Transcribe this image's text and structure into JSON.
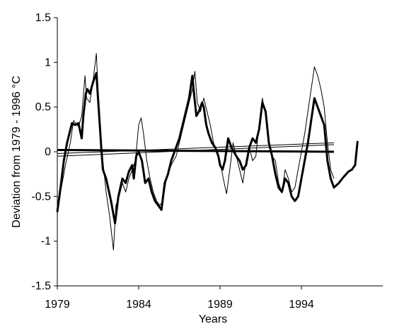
{
  "chart_data": {
    "type": "line",
    "title": "",
    "xlabel": "Years",
    "ylabel": "Deviation from 1979 - 1996 °C",
    "xlim": [
      1979,
      1999
    ],
    "ylim": [
      -1.5,
      1.5
    ],
    "grid": false,
    "legend": "none",
    "x_ticks": [
      1979,
      1984,
      1989,
      1994
    ],
    "x_tick_labels": [
      "1979",
      "1984",
      "1989",
      "1994"
    ],
    "y_ticks": [
      -1.5,
      -1,
      -0.5,
      0,
      0.5,
      1,
      1.5
    ],
    "y_tick_labels": [
      "-1.5",
      "-1",
      "-0.5",
      "0",
      "0.5",
      "1",
      "1.5"
    ],
    "series": [
      {
        "style": "thick",
        "x": [
          1979.0,
          1979.2,
          1979.4,
          1979.6,
          1979.9,
          1980.1,
          1980.3,
          1980.5,
          1980.6,
          1980.75,
          1980.85,
          1981.0,
          1981.2,
          1981.4,
          1981.7,
          1981.8,
          1982.0,
          1982.3,
          1982.55,
          1982.75,
          1983.0,
          1983.2,
          1983.4,
          1983.6,
          1983.7,
          1983.85,
          1984.0,
          1984.2,
          1984.4,
          1984.6,
          1984.8,
          1985.0,
          1985.2,
          1985.4,
          1985.6,
          1985.8,
          1986.0,
          1986.3,
          1986.5,
          1986.7,
          1986.9,
          1987.1,
          1987.3,
          1987.4,
          1987.55,
          1987.7,
          1987.9,
          1988.0,
          1988.15,
          1988.3,
          1988.5,
          1988.7,
          1988.9,
          1989.0,
          1989.15,
          1989.3,
          1989.5,
          1989.7,
          1989.85,
          1990.0,
          1990.2,
          1990.4,
          1990.6,
          1990.8,
          1991.0,
          1991.2,
          1991.4,
          1991.6,
          1991.8,
          1992.0,
          1992.2,
          1992.4,
          1992.6,
          1992.8,
          1993.0,
          1993.2,
          1993.4,
          1993.6,
          1993.8,
          1994.0,
          1994.2,
          1994.4,
          1994.6,
          1994.8,
          1995.0,
          1995.2,
          1995.4,
          1995.6,
          1995.8,
          1996.0,
          1996.3,
          1996.6,
          1996.9,
          1997.1,
          1997.3,
          1997.45
        ],
        "y": [
          -0.67,
          -0.4,
          -0.1,
          0.1,
          0.32,
          0.3,
          0.32,
          0.15,
          0.4,
          0.65,
          0.7,
          0.65,
          0.78,
          0.88,
          0.05,
          -0.2,
          -0.3,
          -0.55,
          -0.8,
          -0.5,
          -0.3,
          -0.35,
          -0.22,
          -0.15,
          -0.3,
          -0.05,
          0.0,
          -0.1,
          -0.35,
          -0.3,
          -0.45,
          -0.55,
          -0.6,
          -0.65,
          -0.35,
          -0.25,
          -0.1,
          0.05,
          0.15,
          0.3,
          0.45,
          0.6,
          0.85,
          0.65,
          0.4,
          0.45,
          0.55,
          0.5,
          0.3,
          0.2,
          0.1,
          0.05,
          -0.05,
          -0.15,
          -0.2,
          -0.1,
          0.15,
          0.05,
          0.0,
          -0.05,
          -0.1,
          -0.2,
          -0.15,
          0.05,
          0.15,
          0.1,
          0.25,
          0.55,
          0.45,
          0.1,
          -0.05,
          -0.25,
          -0.4,
          -0.45,
          -0.3,
          -0.35,
          -0.5,
          -0.55,
          -0.5,
          -0.3,
          -0.1,
          0.1,
          0.35,
          0.6,
          0.5,
          0.4,
          0.3,
          -0.1,
          -0.3,
          -0.4,
          -0.35,
          -0.28,
          -0.22,
          -0.2,
          -0.15,
          0.12
        ]
      },
      {
        "style": "thin",
        "x": [
          1979.0,
          1979.2,
          1979.5,
          1979.8,
          1980.0,
          1980.3,
          1980.5,
          1980.7,
          1980.8,
          1981.0,
          1981.2,
          1981.4,
          1981.6,
          1981.8,
          1982.0,
          1982.2,
          1982.45,
          1982.6,
          1982.8,
          1983.0,
          1983.2,
          1983.4,
          1983.6,
          1983.8,
          1984.0,
          1984.15,
          1984.3,
          1984.5,
          1984.7,
          1984.9,
          1985.1,
          1985.3,
          1985.5,
          1985.7,
          1986.0,
          1986.3,
          1986.5,
          1986.7,
          1986.9,
          1987.1,
          1987.3,
          1987.45,
          1987.6,
          1987.8,
          1988.0,
          1988.2,
          1988.4,
          1988.6,
          1988.8,
          1989.0,
          1989.2,
          1989.4,
          1989.6,
          1989.8,
          1990.0,
          1990.2,
          1990.4,
          1990.6,
          1990.8,
          1991.0,
          1991.2,
          1991.4,
          1991.6,
          1991.8,
          1992.0,
          1992.2,
          1992.4,
          1992.6,
          1992.8,
          1993.0,
          1993.2,
          1993.4,
          1993.6,
          1993.8,
          1994.0,
          1994.2,
          1994.4,
          1994.6,
          1994.8,
          1995.0,
          1995.2,
          1995.4,
          1995.6,
          1995.8,
          1996.0
        ],
        "y": [
          -0.7,
          -0.45,
          -0.15,
          0.1,
          0.35,
          0.28,
          0.4,
          0.85,
          0.6,
          0.55,
          0.8,
          1.1,
          0.3,
          -0.1,
          -0.45,
          -0.7,
          -1.1,
          -0.6,
          -0.5,
          -0.35,
          -0.45,
          -0.3,
          -0.2,
          -0.1,
          0.3,
          0.38,
          0.2,
          -0.1,
          -0.3,
          -0.45,
          -0.55,
          -0.6,
          -0.55,
          -0.3,
          -0.15,
          -0.05,
          0.1,
          0.25,
          0.4,
          0.55,
          0.7,
          0.9,
          0.55,
          0.45,
          0.6,
          0.45,
          0.3,
          0.1,
          0.0,
          -0.1,
          -0.3,
          -0.47,
          -0.2,
          0.1,
          -0.05,
          -0.2,
          -0.35,
          -0.1,
          0.05,
          -0.1,
          -0.05,
          0.3,
          0.6,
          0.4,
          0.1,
          -0.05,
          -0.1,
          -0.35,
          -0.45,
          -0.2,
          -0.3,
          -0.45,
          -0.4,
          -0.2,
          0.0,
          0.2,
          0.45,
          0.7,
          0.95,
          0.85,
          0.7,
          0.5,
          0.1,
          -0.2,
          -0.3
        ]
      },
      {
        "style": "thick-trend",
        "x": [
          1979.0,
          1996.0
        ],
        "y": [
          0.02,
          0.0
        ]
      },
      {
        "style": "thin-trend",
        "x": [
          1979.0,
          1996.0
        ],
        "y": [
          -0.05,
          0.08
        ]
      },
      {
        "style": "thin-trend",
        "x": [
          1979.0,
          1996.0
        ],
        "y": [
          -0.02,
          0.1
        ]
      }
    ]
  }
}
